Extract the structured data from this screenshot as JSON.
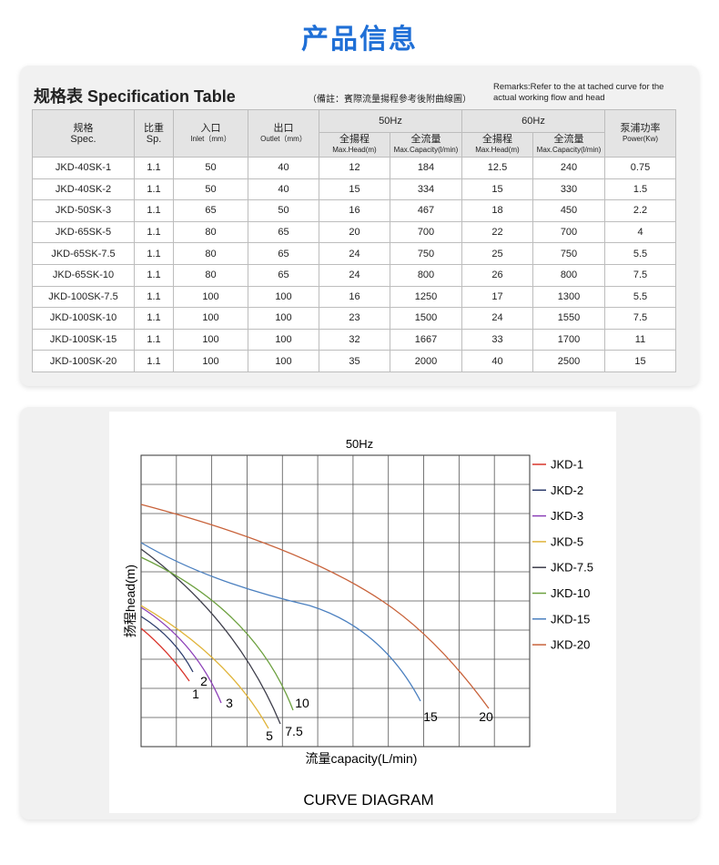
{
  "header": {
    "title": "产品信息"
  },
  "table": {
    "title": "规格表 Specification Table",
    "note": "（備註：賓際流量揚程參考後附曲線圖）",
    "remarks": [
      "Remarks:Refer to the at tached curve for the",
      "actual working flow and head"
    ],
    "columns": {
      "spec": [
        "规格",
        "Spec."
      ],
      "sp": [
        "比重",
        "Sp."
      ],
      "inlet": [
        "入口",
        "Inlet（mm）"
      ],
      "outlet": [
        "出口",
        "Outlet（mm）"
      ],
      "hz50": "50Hz",
      "hz60": "60Hz",
      "head": [
        "全揚程",
        "Max.Head(m)"
      ],
      "capacity": [
        "全流量",
        "Max.Capacity(l/min)"
      ],
      "power": [
        "泵浦功率",
        "Power(Kw)"
      ]
    },
    "rows": [
      [
        "JKD-40SK-1",
        "1.1",
        "50",
        "40",
        "12",
        "184",
        "12.5",
        "240",
        "0.75"
      ],
      [
        "JKD-40SK-2",
        "1.1",
        "50",
        "40",
        "15",
        "334",
        "15",
        "330",
        "1.5"
      ],
      [
        "JKD-50SK-3",
        "1.1",
        "65",
        "50",
        "16",
        "467",
        "18",
        "450",
        "2.2"
      ],
      [
        "JKD-65SK-5",
        "1.1",
        "80",
        "65",
        "20",
        "700",
        "22",
        "700",
        "4"
      ],
      [
        "JKD-65SK-7.5",
        "1.1",
        "80",
        "65",
        "24",
        "750",
        "25",
        "750",
        "5.5"
      ],
      [
        "JKD-65SK-10",
        "1.1",
        "80",
        "65",
        "24",
        "800",
        "26",
        "800",
        "7.5"
      ],
      [
        "JKD-100SK-7.5",
        "1.1",
        "100",
        "100",
        "16",
        "1250",
        "17",
        "1300",
        "5.5"
      ],
      [
        "JKD-100SK-10",
        "1.1",
        "100",
        "100",
        "23",
        "1500",
        "24",
        "1550",
        "7.5"
      ],
      [
        "JKD-100SK-15",
        "1.1",
        "100",
        "100",
        "32",
        "1667",
        "33",
        "1700",
        "11"
      ],
      [
        "JKD-100SK-20",
        "1.1",
        "100",
        "100",
        "35",
        "2000",
        "40",
        "2500",
        "15"
      ]
    ]
  },
  "diagram": {
    "title": "50Hz",
    "y_label": "扬程head(m)",
    "x_label": "流量capacity(L/min)",
    "caption": "CURVE DIAGRAM",
    "legend": [
      "JKD-1",
      "JKD-2",
      "JKD-3",
      "JKD-5",
      "JKD-7.5",
      "JKD-10",
      "JKD-15",
      "JKD-20"
    ],
    "curve_labels": [
      "1",
      "2",
      "3",
      "5",
      "7.5",
      "10",
      "15",
      "20"
    ]
  }
}
